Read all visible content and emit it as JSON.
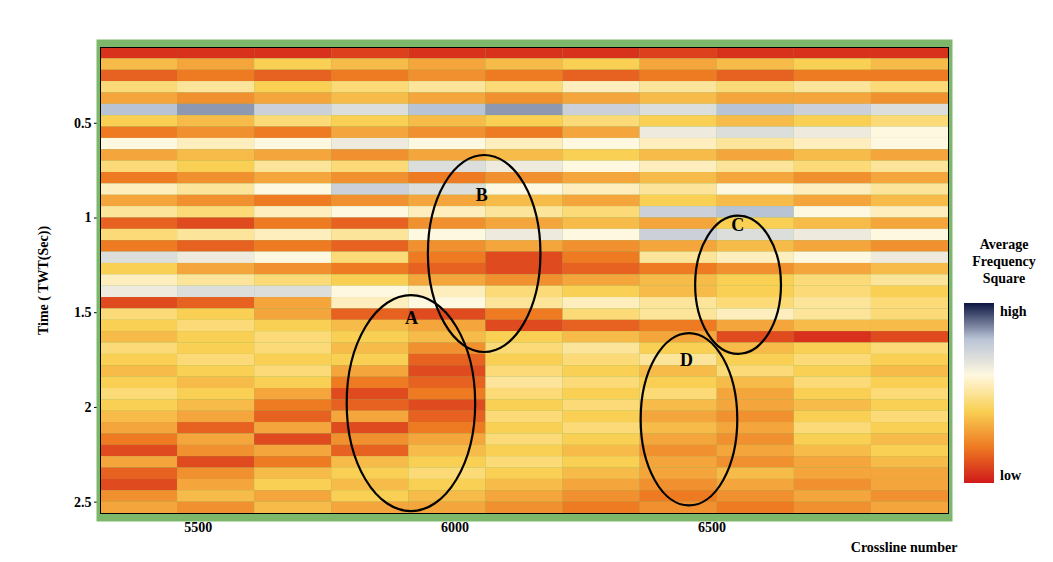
{
  "chart_data": {
    "type": "heatmap",
    "xlabel": "Crossline number",
    "ylabel": "Time ( TWT(Sec))",
    "xlim": [
      5310,
      6960
    ],
    "xticks": [
      5500,
      6000,
      6500
    ],
    "ylim": [
      0.1,
      2.56
    ],
    "yticks": [
      0.5,
      1,
      1.5,
      2,
      2.5
    ],
    "x_edges": [
      5310,
      5460,
      5610,
      5760,
      5910,
      6060,
      6210,
      6360,
      6510,
      6660,
      6810,
      6960
    ],
    "y_edges": [
      0.1,
      0.16,
      0.22,
      0.28,
      0.34,
      0.4,
      0.46,
      0.52,
      0.58,
      0.64,
      0.7,
      0.76,
      0.82,
      0.88,
      0.94,
      1,
      1.06,
      1.12,
      1.18,
      1.24,
      1.3,
      1.36,
      1.42,
      1.48,
      1.54,
      1.6,
      1.66,
      1.72,
      1.78,
      1.84,
      1.9,
      1.96,
      2.02,
      2.08,
      2.14,
      2.2,
      2.26,
      2.32,
      2.38,
      2.44,
      2.5,
      2.56
    ],
    "cells": [
      [
        0.05,
        0.05,
        0.05,
        0.08,
        0.05,
        0.05,
        0.05,
        0.08,
        0.05,
        0.05,
        0.05
      ],
      [
        0.35,
        0.3,
        0.4,
        0.35,
        0.3,
        0.35,
        0.4,
        0.3,
        0.35,
        0.4,
        0.35
      ],
      [
        0.15,
        0.2,
        0.15,
        0.2,
        0.25,
        0.2,
        0.15,
        0.2,
        0.15,
        0.2,
        0.2
      ],
      [
        0.45,
        0.5,
        0.4,
        0.45,
        0.5,
        0.45,
        0.55,
        0.5,
        0.45,
        0.5,
        0.45
      ],
      [
        0.3,
        0.25,
        0.3,
        0.35,
        0.3,
        0.25,
        0.3,
        0.35,
        0.3,
        0.3,
        0.25
      ],
      [
        0.8,
        0.85,
        0.75,
        0.7,
        0.8,
        0.85,
        0.75,
        0.7,
        0.8,
        0.75,
        0.7
      ],
      [
        0.4,
        0.35,
        0.45,
        0.4,
        0.35,
        0.4,
        0.45,
        0.4,
        0.35,
        0.4,
        0.45
      ],
      [
        0.2,
        0.25,
        0.2,
        0.3,
        0.25,
        0.2,
        0.3,
        0.65,
        0.7,
        0.65,
        0.6
      ],
      [
        0.6,
        0.55,
        0.6,
        0.65,
        0.6,
        0.55,
        0.6,
        0.55,
        0.5,
        0.55,
        0.6
      ],
      [
        0.3,
        0.35,
        0.3,
        0.25,
        0.3,
        0.35,
        0.4,
        0.35,
        0.3,
        0.35,
        0.3
      ],
      [
        0.45,
        0.4,
        0.5,
        0.45,
        0.7,
        0.65,
        0.6,
        0.55,
        0.5,
        0.45,
        0.5
      ],
      [
        0.2,
        0.25,
        0.3,
        0.25,
        0.2,
        0.25,
        0.3,
        0.35,
        0.3,
        0.25,
        0.3
      ],
      [
        0.55,
        0.5,
        0.6,
        0.75,
        0.7,
        0.6,
        0.55,
        0.5,
        0.6,
        0.55,
        0.5
      ],
      [
        0.3,
        0.25,
        0.2,
        0.25,
        0.3,
        0.35,
        0.3,
        0.4,
        0.35,
        0.3,
        0.35
      ],
      [
        0.5,
        0.45,
        0.55,
        0.6,
        0.55,
        0.5,
        0.45,
        0.75,
        0.8,
        0.6,
        0.55
      ],
      [
        0.15,
        0.1,
        0.2,
        0.15,
        0.25,
        0.3,
        0.35,
        0.3,
        0.4,
        0.35,
        0.3
      ],
      [
        0.45,
        0.5,
        0.55,
        0.5,
        0.6,
        0.65,
        0.6,
        0.75,
        0.7,
        0.65,
        0.6
      ],
      [
        0.2,
        0.15,
        0.2,
        0.15,
        0.25,
        0.3,
        0.25,
        0.3,
        0.35,
        0.3,
        0.25
      ],
      [
        0.7,
        0.65,
        0.6,
        0.45,
        0.2,
        0.1,
        0.2,
        0.5,
        0.55,
        0.6,
        0.65
      ],
      [
        0.4,
        0.3,
        0.25,
        0.2,
        0.15,
        0.1,
        0.15,
        0.2,
        0.25,
        0.3,
        0.35
      ],
      [
        0.55,
        0.5,
        0.45,
        0.4,
        0.3,
        0.25,
        0.3,
        0.35,
        0.4,
        0.45,
        0.5
      ],
      [
        0.65,
        0.7,
        0.7,
        0.6,
        0.55,
        0.45,
        0.4,
        0.35,
        0.4,
        0.45,
        0.4
      ],
      [
        0.1,
        0.15,
        0.3,
        0.55,
        0.6,
        0.5,
        0.55,
        0.5,
        0.45,
        0.5,
        0.45
      ],
      [
        0.45,
        0.4,
        0.3,
        0.15,
        0.1,
        0.2,
        0.45,
        0.5,
        0.55,
        0.5,
        0.45
      ],
      [
        0.4,
        0.45,
        0.4,
        0.35,
        0.3,
        0.1,
        0.15,
        0.2,
        0.3,
        0.35,
        0.35
      ],
      [
        0.35,
        0.4,
        0.45,
        0.4,
        0.35,
        0.4,
        0.35,
        0.3,
        0.1,
        0.05,
        0.1
      ],
      [
        0.45,
        0.4,
        0.45,
        0.35,
        0.25,
        0.45,
        0.5,
        0.4,
        0.35,
        0.4,
        0.45
      ],
      [
        0.4,
        0.45,
        0.4,
        0.4,
        0.15,
        0.4,
        0.45,
        0.5,
        0.4,
        0.45,
        0.4
      ],
      [
        0.35,
        0.4,
        0.45,
        0.3,
        0.1,
        0.45,
        0.4,
        0.35,
        0.45,
        0.4,
        0.35
      ],
      [
        0.4,
        0.35,
        0.4,
        0.2,
        0.15,
        0.5,
        0.45,
        0.4,
        0.35,
        0.45,
        0.4
      ],
      [
        0.45,
        0.4,
        0.3,
        0.1,
        0.2,
        0.45,
        0.4,
        0.45,
        0.3,
        0.4,
        0.45
      ],
      [
        0.4,
        0.35,
        0.2,
        0.15,
        0.1,
        0.4,
        0.45,
        0.35,
        0.3,
        0.35,
        0.4
      ],
      [
        0.35,
        0.3,
        0.15,
        0.3,
        0.15,
        0.45,
        0.4,
        0.3,
        0.25,
        0.4,
        0.45
      ],
      [
        0.3,
        0.15,
        0.3,
        0.1,
        0.2,
        0.4,
        0.45,
        0.35,
        0.3,
        0.45,
        0.4
      ],
      [
        0.2,
        0.3,
        0.1,
        0.25,
        0.3,
        0.45,
        0.4,
        0.3,
        0.25,
        0.4,
        0.35
      ],
      [
        0.1,
        0.25,
        0.3,
        0.15,
        0.35,
        0.4,
        0.35,
        0.25,
        0.3,
        0.35,
        0.4
      ],
      [
        0.3,
        0.1,
        0.2,
        0.35,
        0.4,
        0.45,
        0.4,
        0.3,
        0.25,
        0.3,
        0.35
      ],
      [
        0.15,
        0.25,
        0.35,
        0.4,
        0.45,
        0.4,
        0.35,
        0.3,
        0.35,
        0.3,
        0.3
      ],
      [
        0.1,
        0.3,
        0.4,
        0.35,
        0.4,
        0.35,
        0.3,
        0.25,
        0.3,
        0.25,
        0.3
      ],
      [
        0.25,
        0.35,
        0.3,
        0.4,
        0.35,
        0.3,
        0.25,
        0.2,
        0.25,
        0.3,
        0.25
      ],
      [
        0.3,
        0.25,
        0.35,
        0.3,
        0.3,
        0.25,
        0.2,
        0.25,
        0.2,
        0.25,
        0.3
      ]
    ],
    "colorbar": {
      "title": "Average Frequency Square",
      "range": [
        0,
        1
      ],
      "ticks": [
        {
          "value": 1,
          "label": "high"
        },
        {
          "value": 0,
          "label": "low"
        }
      ],
      "colors": [
        "#d01a1a",
        "#ee7a22",
        "#f9d054",
        "#fff8e0",
        "#b9c3d6",
        "#0c1540"
      ]
    },
    "annotations": [
      {
        "text": "A",
        "x": [
          5790,
          6040
        ],
        "y": [
          1.41,
          2.55
        ],
        "text_x": 5915,
        "text_y": 1.53
      },
      {
        "text": "B",
        "x": [
          5948,
          6167
        ],
        "y": [
          0.67,
          1.71
        ],
        "text_x": 6052,
        "text_y": 0.88
      },
      {
        "text": "C",
        "x": [
          6468,
          6635
        ],
        "y": [
          0.99,
          1.72
        ],
        "text_x": 6550,
        "text_y": 1.04
      },
      {
        "text": "D",
        "x": [
          6362,
          6550
        ],
        "y": [
          1.61,
          2.52
        ],
        "text_x": 6450,
        "text_y": 1.75
      }
    ]
  }
}
